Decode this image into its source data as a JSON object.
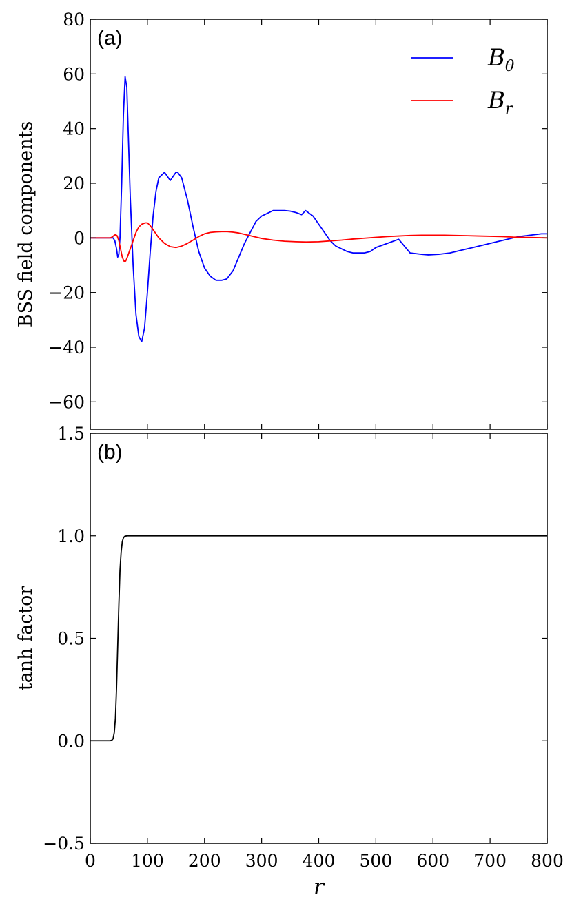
{
  "chart_data": [
    {
      "type": "line",
      "panel_label": "(a)",
      "ylabel": "BSS field components",
      "xlim": [
        0,
        800
      ],
      "ylim": [
        -70,
        80
      ],
      "x_ticks": [
        0,
        100,
        200,
        300,
        400,
        500,
        600,
        700,
        800
      ],
      "y_ticks": [
        -60,
        -40,
        -20,
        0,
        20,
        40,
        60,
        80
      ],
      "y_tick_labels": [
        "−60",
        "−40",
        "−20",
        "0",
        "20",
        "40",
        "60",
        "80"
      ],
      "legend": {
        "position": "top-right"
      },
      "series": [
        {
          "name": "B",
          "name_subscript": "θ",
          "color": "#0000ff",
          "x": [
            0,
            40,
            43,
            46,
            48,
            50,
            52,
            55,
            58,
            61,
            64,
            67,
            70,
            75,
            80,
            85,
            90,
            95,
            100,
            105,
            110,
            115,
            120,
            130,
            140,
            150,
            153,
            160,
            170,
            180,
            190,
            200,
            210,
            220,
            230,
            239,
            250,
            260,
            270,
            280,
            290,
            300,
            310,
            320,
            330,
            340,
            350,
            360,
            370,
            377,
            390,
            400,
            410,
            420,
            430,
            440,
            450,
            460,
            470,
            480,
            490,
            500,
            520,
            540,
            560,
            580,
            592,
            610,
            630,
            650,
            670,
            690,
            710,
            730,
            750,
            770,
            790,
            800
          ],
          "y": [
            0,
            0,
            -1,
            -4,
            -7,
            -6,
            0,
            20,
            45,
            59,
            55,
            35,
            15,
            -10,
            -28,
            -36,
            -38,
            -33,
            -20,
            -5,
            8,
            17,
            22,
            24,
            21,
            24,
            24,
            22,
            14,
            4,
            -5,
            -11,
            -14,
            -15.5,
            -15.5,
            -15,
            -12,
            -7,
            -2,
            2,
            6,
            8,
            9,
            10,
            10,
            10,
            9.8,
            9.3,
            8.5,
            10,
            8,
            5,
            2,
            -1,
            -3,
            -4,
            -5,
            -5.5,
            -5.5,
            -5.5,
            -5,
            -3.5,
            -2,
            -0.5,
            -5.5,
            -6,
            -6.2,
            -6,
            -5.5,
            -4.5,
            -3.5,
            -2.5,
            -1.5,
            -0.5,
            0.5,
            1,
            1.5,
            1.5
          ]
        },
        {
          "name": "B",
          "name_subscript": "r",
          "color": "#ff0000",
          "x": [
            0,
            35,
            38,
            41,
            44,
            47,
            50,
            53,
            56,
            59,
            62,
            65,
            70,
            75,
            80,
            85,
            90,
            96,
            100,
            105,
            110,
            115,
            120,
            130,
            140,
            150,
            160,
            170,
            180,
            190,
            200,
            210,
            220,
            230,
            240,
            250,
            260,
            270,
            280,
            290,
            300,
            320,
            340,
            360,
            378,
            400,
            420,
            440,
            460,
            480,
            500,
            520,
            540,
            560,
            580,
            600,
            620,
            640,
            660,
            680,
            700,
            720,
            740,
            760,
            780,
            800
          ],
          "y": [
            0,
            0,
            0.3,
            0.8,
            1.2,
            0.8,
            -1,
            -4,
            -7,
            -8.5,
            -8.5,
            -7,
            -4,
            -1,
            2,
            4,
            5,
            5.5,
            5.5,
            4.5,
            3,
            1.5,
            0,
            -2,
            -3.2,
            -3.5,
            -3,
            -2,
            -0.8,
            0.5,
            1.5,
            2,
            2.2,
            2.3,
            2.3,
            2.1,
            1.8,
            1.3,
            0.8,
            0.3,
            -0.2,
            -0.8,
            -1.2,
            -1.4,
            -1.5,
            -1.4,
            -1.1,
            -0.8,
            -0.4,
            -0.1,
            0.2,
            0.5,
            0.7,
            0.9,
            1,
            1,
            1,
            0.9,
            0.8,
            0.7,
            0.6,
            0.5,
            0.3,
            0.2,
            0.1,
            0
          ]
        }
      ]
    },
    {
      "type": "line",
      "panel_label": "(b)",
      "ylabel": "tanh factor",
      "xlabel": "r",
      "xlim": [
        0,
        800
      ],
      "ylim": [
        -0.5,
        1.5
      ],
      "x_ticks": [
        0,
        100,
        200,
        300,
        400,
        500,
        600,
        700,
        800
      ],
      "x_tick_labels": [
        "0",
        "100",
        "200",
        "300",
        "400",
        "500",
        "600",
        "700",
        "800"
      ],
      "y_ticks": [
        -0.5,
        0.0,
        0.5,
        1.0,
        1.5
      ],
      "y_tick_labels": [
        "−0.5",
        "0.0",
        "0.5",
        "1.0",
        "1.5"
      ],
      "series": [
        {
          "color": "#000000",
          "x": [
            0,
            35,
            38,
            40,
            42,
            44,
            46,
            48,
            50,
            52,
            54,
            56,
            58,
            60,
            62,
            65,
            70,
            80,
            800
          ],
          "y": [
            0,
            0,
            0.003,
            0.01,
            0.04,
            0.11,
            0.26,
            0.46,
            0.66,
            0.83,
            0.92,
            0.97,
            0.99,
            0.997,
            0.999,
            1,
            1,
            1,
            1
          ]
        }
      ]
    }
  ]
}
